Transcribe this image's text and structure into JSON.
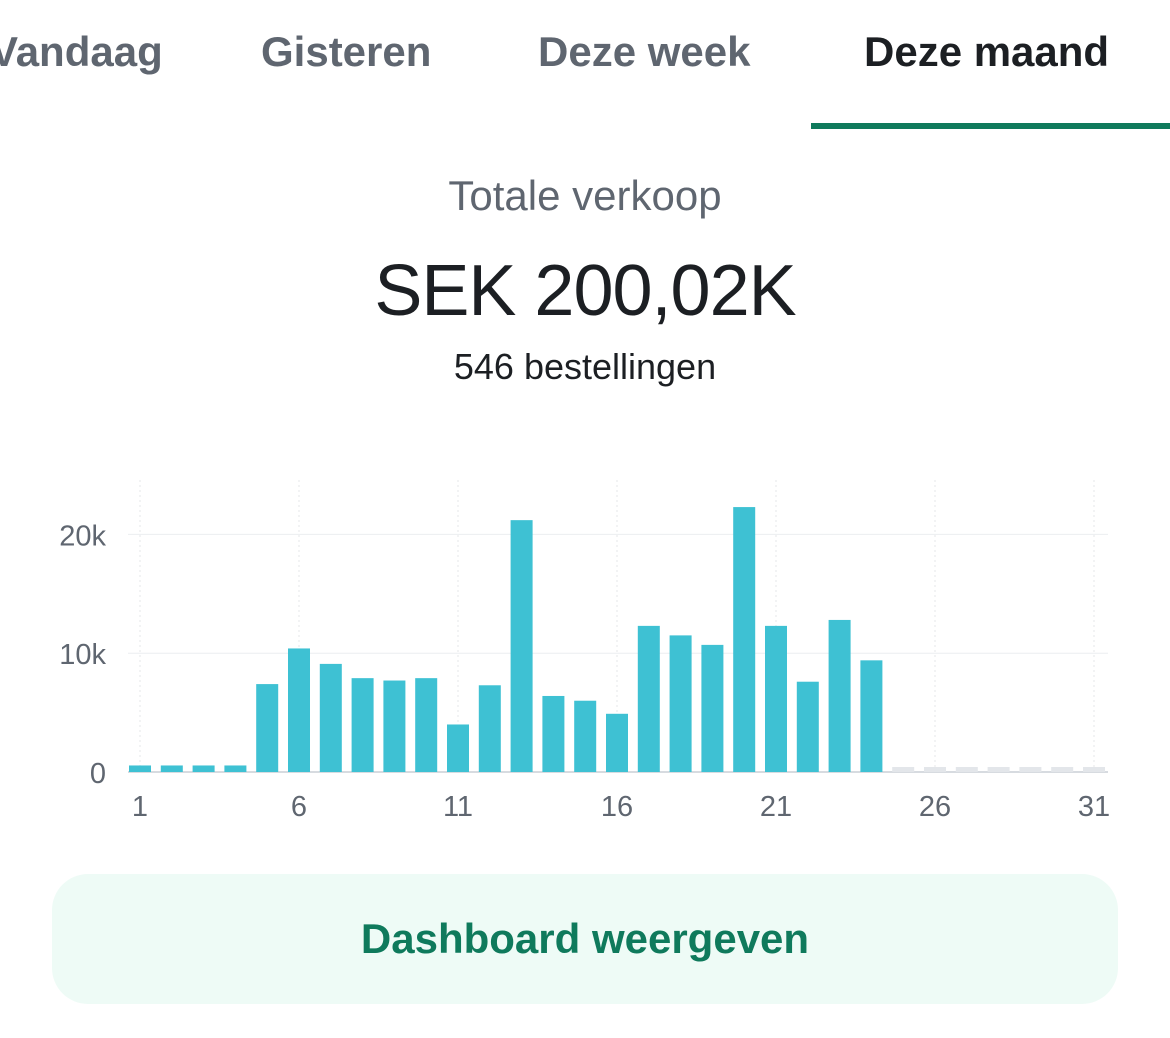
{
  "tabs": [
    {
      "label": "Vandaag",
      "active": false
    },
    {
      "label": "Gisteren",
      "active": false
    },
    {
      "label": "Deze week",
      "active": false
    },
    {
      "label": "Deze maand",
      "active": true
    }
  ],
  "summary": {
    "label": "Totale verkoop",
    "value": "SEK 200,02K",
    "orders": "546 bestellingen"
  },
  "chart_data": {
    "type": "bar",
    "x": [
      1,
      2,
      3,
      4,
      5,
      6,
      7,
      8,
      9,
      10,
      11,
      12,
      13,
      14,
      15,
      16,
      17,
      18,
      19,
      20,
      21,
      22,
      23,
      24,
      25,
      26,
      27,
      28,
      29,
      30,
      31
    ],
    "values": [
      550,
      550,
      550,
      550,
      7400,
      10400,
      9100,
      7900,
      7700,
      7900,
      4000,
      7300,
      21200,
      6400,
      6000,
      4900,
      12300,
      11500,
      10700,
      22300,
      12300,
      7600,
      12800,
      9400,
      null,
      null,
      null,
      null,
      null,
      null,
      null
    ],
    "y_ticks": [
      "0",
      "10k",
      "20k"
    ],
    "y_tick_values": [
      0,
      10000,
      20000
    ],
    "x_tick_labels": [
      "1",
      "6",
      "11",
      "16",
      "21",
      "26",
      "31"
    ],
    "x_tick_values": [
      1,
      6,
      11,
      16,
      21,
      26,
      31
    ],
    "ylim": [
      0,
      24500
    ],
    "bar_color": "#3ec1d3",
    "empty_color": "#e3e6ea",
    "grid": true
  },
  "button": {
    "label": "Dashboard weergeven"
  },
  "colors": {
    "accent": "#0f7a5c",
    "button_bg": "#eefbf6"
  }
}
